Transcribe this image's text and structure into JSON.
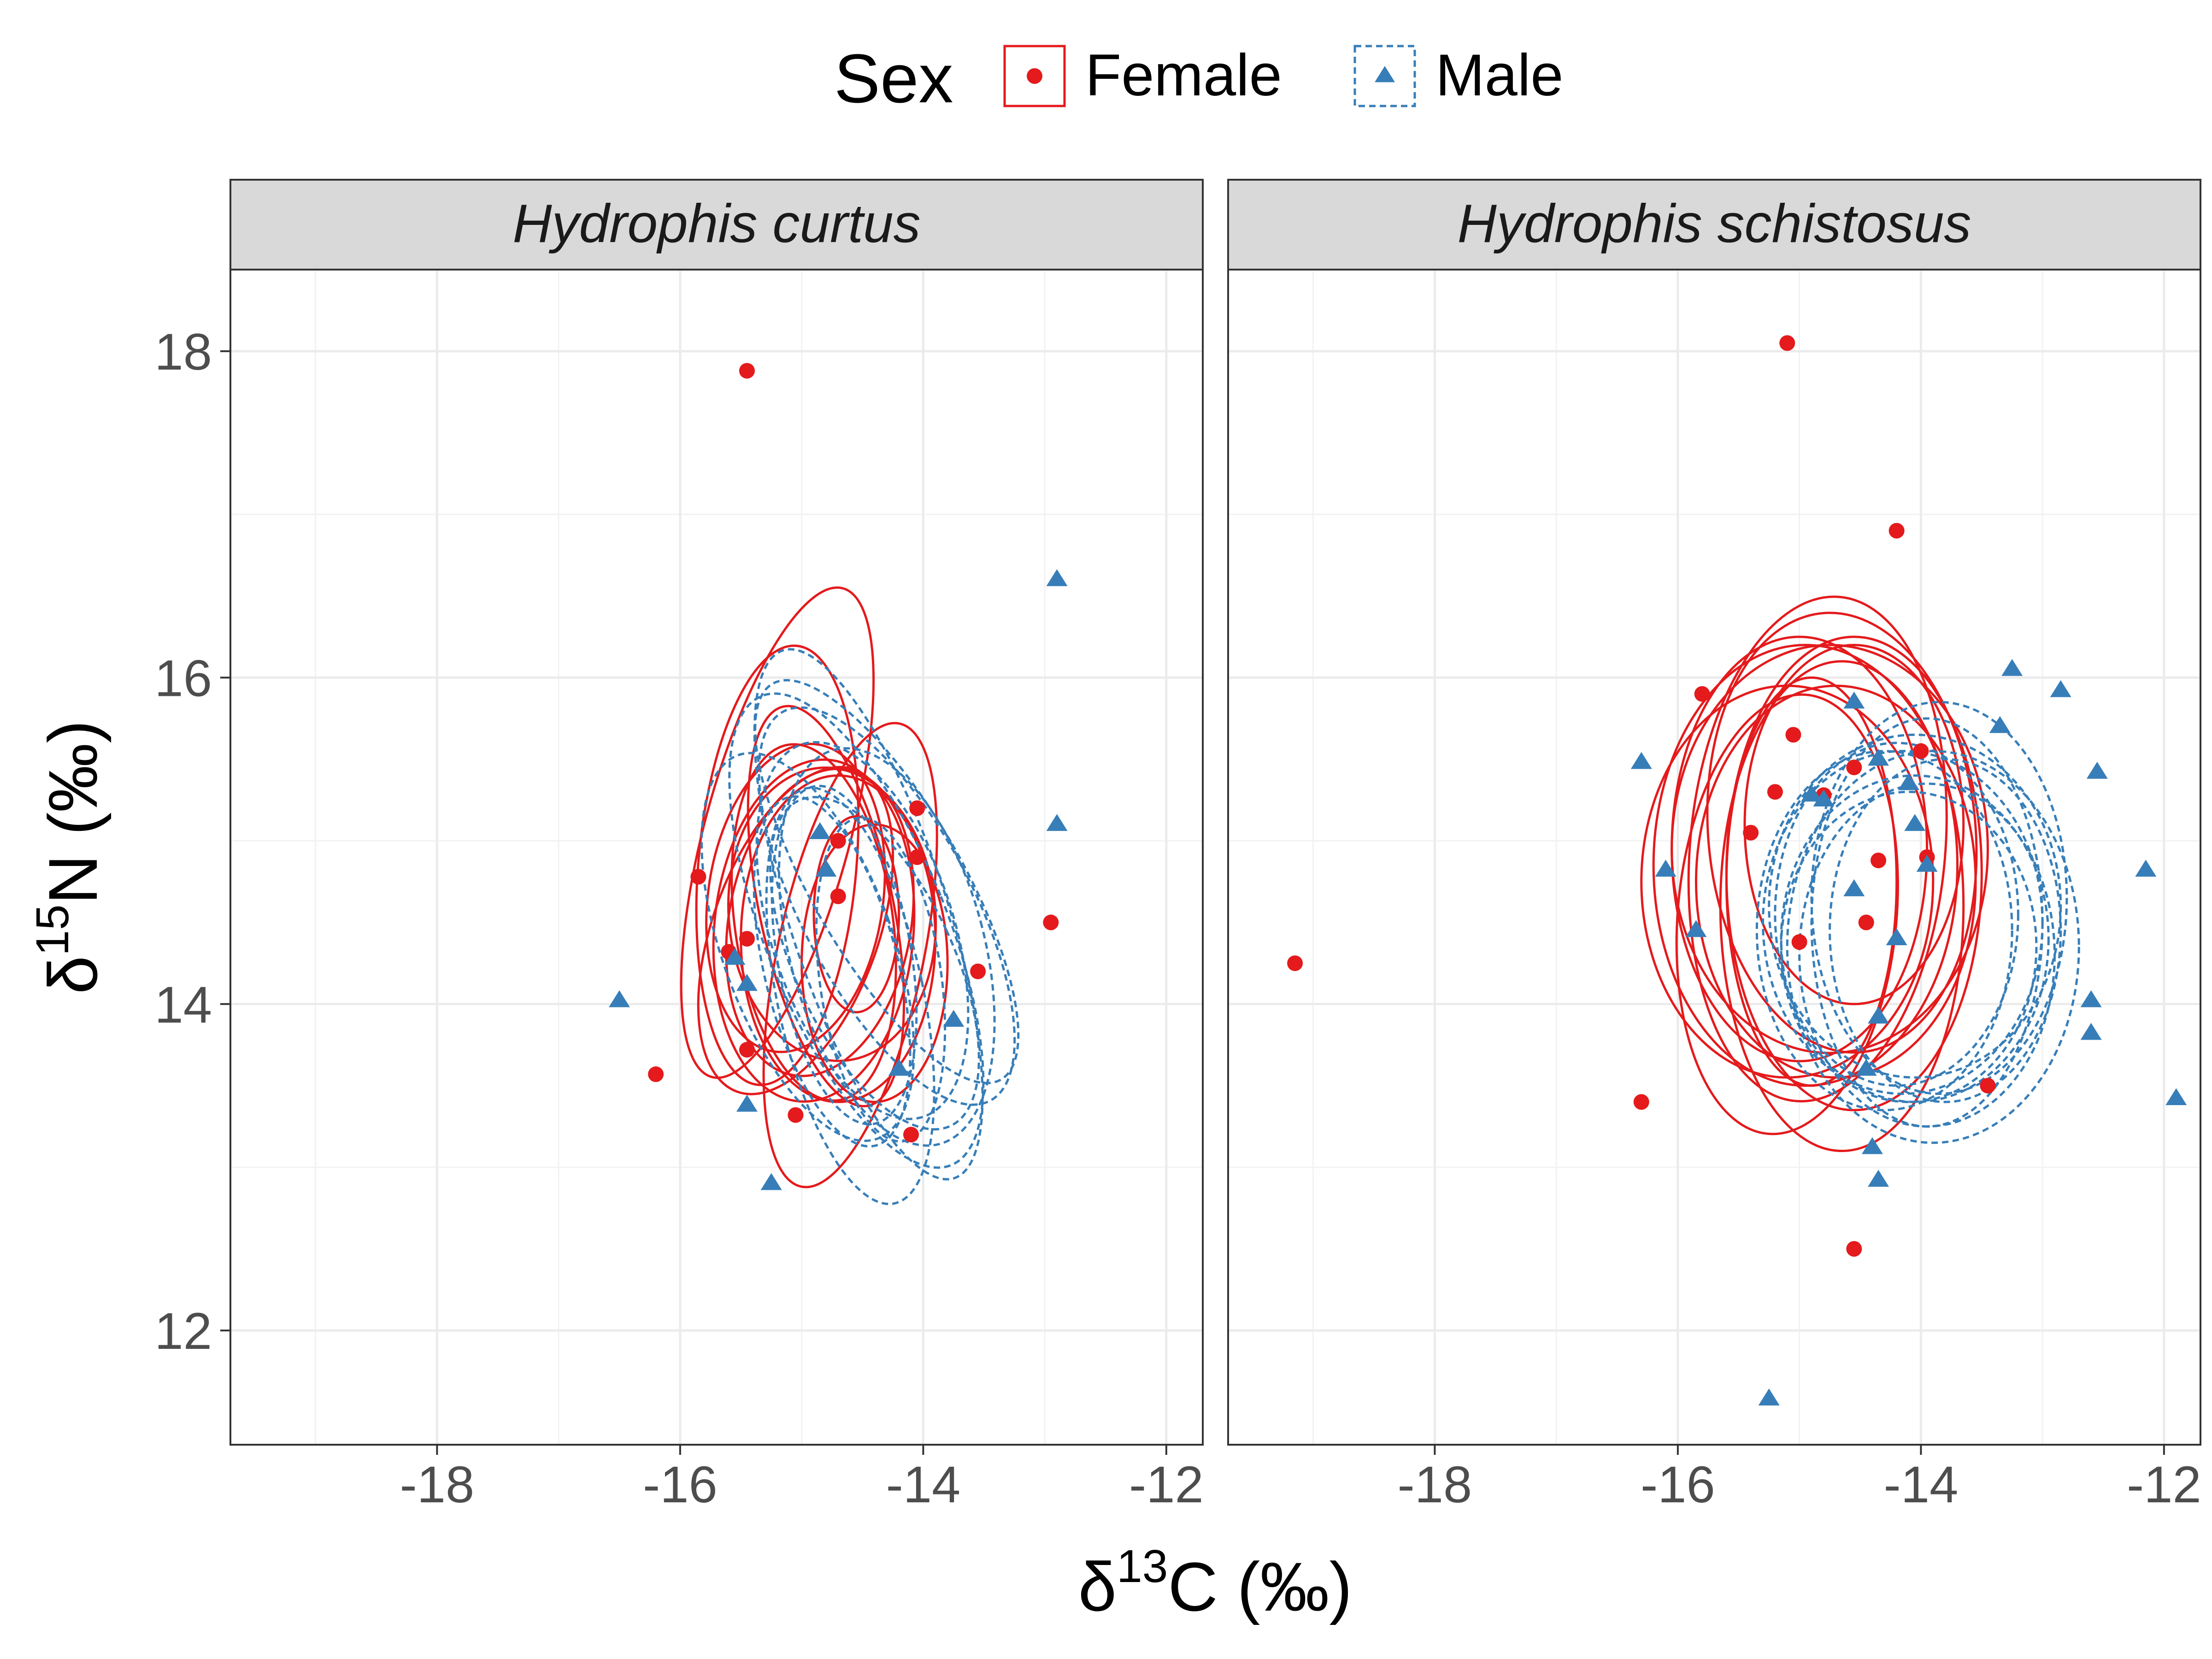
{
  "legend": {
    "title": "Sex",
    "entries": [
      {
        "label": "Female",
        "color": "#E41A1C",
        "shape": "circle",
        "line": "solid"
      },
      {
        "label": "Male",
        "color": "#377EB8",
        "shape": "triangle",
        "line": "dashed"
      }
    ],
    "position": "top"
  },
  "x_label": {
    "base": "δ",
    "sup": "13",
    "rest": "C (‰)"
  },
  "y_label": {
    "base": "δ",
    "sup": "15",
    "rest": "N (‰)"
  },
  "chart_data": {
    "type": "scatter",
    "xlim": [
      -19.7,
      -11.7
    ],
    "ylim": [
      11.3,
      18.5
    ],
    "x_ticks": [
      -18,
      -16,
      -14,
      -12
    ],
    "x_tick_labels": [
      "-18",
      "-16",
      "-14",
      "-12"
    ],
    "y_ticks": [
      12,
      14,
      16,
      18
    ],
    "y_tick_labels": [
      "12",
      "14",
      "16",
      "18"
    ],
    "grid": true,
    "panels": [
      {
        "title": "Hydrophis curtus",
        "series": [
          {
            "name": "Female",
            "points": [
              [
                -15.45,
                17.88
              ],
              [
                -16.2,
                13.57
              ],
              [
                -15.85,
                14.78
              ],
              [
                -15.6,
                14.32
              ],
              [
                -15.45,
                14.4
              ],
              [
                -15.45,
                13.72
              ],
              [
                -15.05,
                13.32
              ],
              [
                -14.7,
                15.0
              ],
              [
                -14.7,
                14.66
              ],
              [
                -14.05,
                15.2
              ],
              [
                -14.05,
                14.9
              ],
              [
                -14.1,
                13.2
              ],
              [
                -13.55,
                14.2
              ],
              [
                -12.95,
                14.5
              ]
            ],
            "ellipses": [
              [
                -15.05,
                14.65,
                0.72,
                0.95,
                8
              ],
              [
                -14.9,
                14.45,
                0.82,
                1.05,
                5
              ],
              [
                -14.85,
                14.5,
                0.75,
                0.95,
                10
              ],
              [
                -14.75,
                14.55,
                0.85,
                0.9,
                -5
              ],
              [
                -14.7,
                14.4,
                0.8,
                1.0,
                0
              ],
              [
                -15.2,
                15.05,
                0.6,
                1.55,
                15
              ],
              [
                -15.2,
                14.85,
                0.65,
                1.35,
                5
              ],
              [
                -14.9,
                14.5,
                0.65,
                1.1,
                -8
              ],
              [
                -14.6,
                14.3,
                0.6,
                1.45,
                12
              ],
              [
                -14.55,
                14.55,
                0.35,
                0.6,
                0
              ],
              [
                -14.4,
                14.25,
                0.6,
                0.85,
                0
              ],
              [
                -15.05,
                14.45,
                0.68,
                1.05,
                20
              ],
              [
                -14.8,
                14.6,
                0.55,
                1.25,
                -12
              ]
            ]
          },
          {
            "name": "Male",
            "points": [
              [
                -16.5,
                14.02
              ],
              [
                -15.55,
                14.28
              ],
              [
                -15.45,
                14.12
              ],
              [
                -15.45,
                13.38
              ],
              [
                -15.25,
                12.9
              ],
              [
                -14.85,
                15.05
              ],
              [
                -14.8,
                14.82
              ],
              [
                -14.2,
                13.6
              ],
              [
                -13.75,
                13.9
              ],
              [
                -12.9,
                16.6
              ],
              [
                -12.9,
                15.1
              ]
            ],
            "ellipses": [
              [
                -14.55,
                14.45,
                0.75,
                1.55,
                -22
              ],
              [
                -14.45,
                14.55,
                0.65,
                1.7,
                -18
              ],
              [
                -14.4,
                14.25,
                0.65,
                1.1,
                -25
              ],
              [
                -14.3,
                14.35,
                0.8,
                1.25,
                -15
              ],
              [
                -14.6,
                14.05,
                0.6,
                1.3,
                -12
              ],
              [
                -14.3,
                14.6,
                0.7,
                1.35,
                -28
              ],
              [
                -14.65,
                14.3,
                0.55,
                1.05,
                -10
              ],
              [
                -14.95,
                14.35,
                0.7,
                1.25,
                -20
              ],
              [
                -14.35,
                14.15,
                0.5,
                1.0,
                -8
              ],
              [
                -14.3,
                14.75,
                0.62,
                1.4,
                -30
              ],
              [
                -14.5,
                14.45,
                0.75,
                1.2,
                -18
              ],
              [
                -14.75,
                14.2,
                0.55,
                1.1,
                -14
              ]
            ]
          }
        ]
      },
      {
        "title": "Hydrophis schistosus",
        "series": [
          {
            "name": "Female",
            "points": [
              [
                -15.1,
                18.05
              ],
              [
                -14.2,
                16.9
              ],
              [
                -15.8,
                15.9
              ],
              [
                -15.05,
                15.65
              ],
              [
                -15.2,
                15.3
              ],
              [
                -14.8,
                15.28
              ],
              [
                -14.55,
                15.45
              ],
              [
                -14.0,
                15.55
              ],
              [
                -15.4,
                15.05
              ],
              [
                -14.35,
                14.88
              ],
              [
                -13.95,
                14.9
              ],
              [
                -15.0,
                14.38
              ],
              [
                -14.45,
                14.5
              ],
              [
                -19.15,
                14.25
              ],
              [
                -16.3,
                13.4
              ],
              [
                -13.45,
                13.5
              ],
              [
                -14.55,
                12.5
              ]
            ],
            "ellipses": [
              [
                -14.95,
                14.85,
                1.25,
                1.35,
                0
              ],
              [
                -14.55,
                14.8,
                1.05,
                1.45,
                0
              ],
              [
                -14.85,
                14.95,
                1.05,
                1.55,
                5
              ],
              [
                -15.1,
                14.75,
                1.2,
                1.2,
                0
              ],
              [
                -14.65,
                15.05,
                1.1,
                1.35,
                -5
              ],
              [
                -15.1,
                14.55,
                0.9,
                1.35,
                5
              ],
              [
                -14.65,
                14.6,
                1.0,
                1.5,
                0
              ],
              [
                -14.75,
                14.95,
                1.3,
                1.25,
                0
              ],
              [
                -14.9,
                14.75,
                0.7,
                1.25,
                0
              ],
              [
                -14.7,
                14.75,
                1.15,
                1.2,
                0
              ],
              [
                -15.0,
                14.95,
                1.05,
                1.3,
                0
              ],
              [
                -14.55,
                15.1,
                0.9,
                1.1,
                0
              ]
            ]
          },
          {
            "name": "Male",
            "points": [
              [
                -16.3,
                15.48
              ],
              [
                -16.1,
                14.82
              ],
              [
                -15.85,
                14.45
              ],
              [
                -14.9,
                15.28
              ],
              [
                -14.8,
                15.25
              ],
              [
                -14.55,
                15.85
              ],
              [
                -14.35,
                15.5
              ],
              [
                -14.55,
                14.7
              ],
              [
                -14.2,
                14.4
              ],
              [
                -14.1,
                15.35
              ],
              [
                -14.05,
                15.1
              ],
              [
                -13.95,
                14.85
              ],
              [
                -13.35,
                15.7
              ],
              [
                -13.25,
                16.05
              ],
              [
                -12.85,
                15.92
              ],
              [
                -12.55,
                15.42
              ],
              [
                -12.15,
                14.82
              ],
              [
                -12.6,
                14.02
              ],
              [
                -12.6,
                13.82
              ],
              [
                -11.9,
                13.42
              ],
              [
                -14.35,
                13.92
              ],
              [
                -14.45,
                13.6
              ],
              [
                -14.4,
                13.12
              ],
              [
                -14.35,
                12.92
              ],
              [
                -15.25,
                11.58
              ]
            ],
            "ellipses": [
              [
                -14.05,
                14.4,
                1.1,
                1.0,
                0
              ],
              [
                -13.95,
                14.3,
                1.05,
                1.05,
                0
              ],
              [
                -14.15,
                14.5,
                1.15,
                1.05,
                0
              ],
              [
                -13.85,
                14.65,
                1.05,
                1.2,
                0
              ],
              [
                -13.9,
                14.35,
                1.2,
                1.2,
                0
              ],
              [
                -14.2,
                14.55,
                1.0,
                1.05,
                0
              ],
              [
                -13.95,
                14.5,
                0.95,
                1.25,
                0
              ],
              [
                -14.1,
                14.35,
                1.05,
                0.95,
                0
              ],
              [
                -14.05,
                14.6,
                1.2,
                1.05,
                0
              ],
              [
                -13.8,
                14.45,
                0.95,
                1.05,
                0
              ],
              [
                -14.3,
                14.45,
                1.05,
                1.1,
                0
              ]
            ]
          }
        ]
      }
    ]
  }
}
